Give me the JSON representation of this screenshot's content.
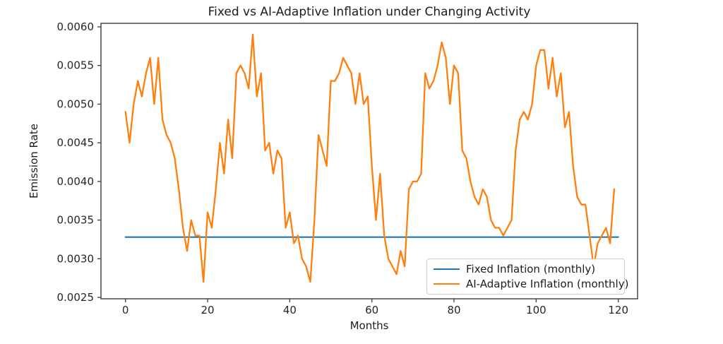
{
  "figure": {
    "title": "Fixed vs AI-Adaptive Inflation under Changing Activity",
    "xlabel": "Months",
    "ylabel": "Emission Rate"
  },
  "chart_data": {
    "type": "line",
    "title": "Fixed vs AI-Adaptive Inflation under Changing Activity",
    "xlabel": "Months",
    "ylabel": "Emission Rate",
    "xticks": [
      0,
      20,
      40,
      60,
      80,
      100,
      120
    ],
    "yticks": [
      0.0025,
      0.003,
      0.0035,
      0.004,
      0.0045,
      0.005,
      0.0055,
      0.006
    ],
    "xlim": [
      -6,
      125
    ],
    "ylim": [
      0.00248,
      0.00605
    ],
    "grid": false,
    "legend_position": "lower right",
    "x": [
      0,
      1,
      2,
      3,
      4,
      5,
      6,
      7,
      8,
      9,
      10,
      11,
      12,
      13,
      14,
      15,
      16,
      17,
      18,
      19,
      20,
      21,
      22,
      23,
      24,
      25,
      26,
      27,
      28,
      29,
      30,
      31,
      32,
      33,
      34,
      35,
      36,
      37,
      38,
      39,
      40,
      41,
      42,
      43,
      44,
      45,
      46,
      47,
      48,
      49,
      50,
      51,
      52,
      53,
      54,
      55,
      56,
      57,
      58,
      59,
      60,
      61,
      62,
      63,
      64,
      65,
      66,
      67,
      68,
      69,
      70,
      71,
      72,
      73,
      74,
      75,
      76,
      77,
      78,
      79,
      80,
      81,
      82,
      83,
      84,
      85,
      86,
      87,
      88,
      89,
      90,
      91,
      92,
      93,
      94,
      95,
      96,
      97,
      98,
      99,
      100,
      101,
      102,
      103,
      104,
      105,
      106,
      107,
      108,
      109,
      110,
      111,
      112,
      113,
      114,
      115,
      116,
      117,
      118,
      119
    ],
    "series": [
      {
        "name": "Fixed Inflation (monthly)",
        "color": "#1f77b4",
        "constant_value": 0.00328
      },
      {
        "name": "AI-Adaptive Inflation (monthly)",
        "color": "#ff7f0e",
        "values": [
          0.0049,
          0.0045,
          0.005,
          0.0053,
          0.0051,
          0.0054,
          0.0056,
          0.005,
          0.0056,
          0.0048,
          0.0046,
          0.0045,
          0.0043,
          0.0039,
          0.0034,
          0.0031,
          0.0035,
          0.0033,
          0.0033,
          0.0027,
          0.0036,
          0.0034,
          0.0039,
          0.0045,
          0.0041,
          0.0048,
          0.0043,
          0.0054,
          0.0055,
          0.0054,
          0.0052,
          0.0059,
          0.0051,
          0.0054,
          0.0044,
          0.0045,
          0.0041,
          0.0044,
          0.0043,
          0.0034,
          0.0036,
          0.0032,
          0.0033,
          0.003,
          0.0029,
          0.0027,
          0.0035,
          0.0046,
          0.0044,
          0.0042,
          0.0053,
          0.0053,
          0.0054,
          0.0056,
          0.0055,
          0.0054,
          0.005,
          0.0054,
          0.005,
          0.0051,
          0.0042,
          0.0035,
          0.0041,
          0.0033,
          0.003,
          0.0029,
          0.0028,
          0.0031,
          0.0029,
          0.0039,
          0.004,
          0.004,
          0.0041,
          0.0054,
          0.0052,
          0.0053,
          0.0055,
          0.0058,
          0.0056,
          0.005,
          0.0055,
          0.0054,
          0.0044,
          0.0043,
          0.004,
          0.0038,
          0.0037,
          0.0039,
          0.0038,
          0.0035,
          0.0034,
          0.0034,
          0.0033,
          0.0034,
          0.0035,
          0.0044,
          0.0048,
          0.0049,
          0.0048,
          0.005,
          0.0055,
          0.0057,
          0.0057,
          0.0052,
          0.0056,
          0.0051,
          0.0054,
          0.0047,
          0.0049,
          0.0042,
          0.0038,
          0.0037,
          0.0037,
          0.0033,
          0.0029,
          0.0032,
          0.0033,
          0.0034,
          0.0032,
          0.0039
        ]
      }
    ]
  }
}
